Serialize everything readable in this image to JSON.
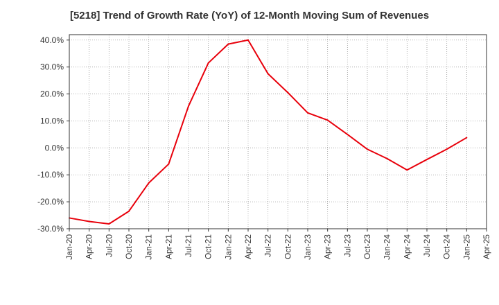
{
  "chart_data": {
    "type": "line",
    "title": "[5218]  Trend of Growth Rate (YoY) of 12-Month Moving Sum of Revenues",
    "xlabel": "",
    "ylabel": "",
    "x_tick_labels": [
      "Jan-20",
      "Apr-20",
      "Jul-20",
      "Oct-20",
      "Jan-21",
      "Apr-21",
      "Jul-21",
      "Oct-21",
      "Jan-22",
      "Apr-22",
      "Jul-22",
      "Oct-22",
      "Jan-23",
      "Apr-23",
      "Jul-23",
      "Oct-23",
      "Jan-24",
      "Apr-24",
      "Jul-24",
      "Oct-24",
      "Jan-25",
      "Apr-25"
    ],
    "y_tick_labels": [
      "40.0%",
      "30.0%",
      "20.0%",
      "10.0%",
      "0.0%",
      "-10.0%",
      "-20.0%",
      "-30.0%"
    ],
    "y_ticks": [
      40,
      30,
      20,
      10,
      0,
      -10,
      -20,
      -30
    ],
    "ylim": [
      -30,
      42
    ],
    "grid": true,
    "series": [
      {
        "color": "#e8000b",
        "x": [
          "Jan-20",
          "Apr-20",
          "Jul-20",
          "Oct-20",
          "Jan-21",
          "Apr-21",
          "Jul-21",
          "Oct-21",
          "Jan-22",
          "Apr-22",
          "Jul-22",
          "Oct-22",
          "Jan-23",
          "Apr-23",
          "Jul-23",
          "Oct-23",
          "Jan-24",
          "Apr-24",
          "Jul-24",
          "Oct-24",
          "Jan-25"
        ],
        "values": [
          -26.0,
          -27.3,
          -28.2,
          -23.5,
          -13.0,
          -6.0,
          15.5,
          31.5,
          38.5,
          40.0,
          27.5,
          20.5,
          13.0,
          10.3,
          5.0,
          -0.5,
          -4.0,
          -8.2,
          -4.3,
          -0.5,
          3.8
        ]
      }
    ]
  }
}
